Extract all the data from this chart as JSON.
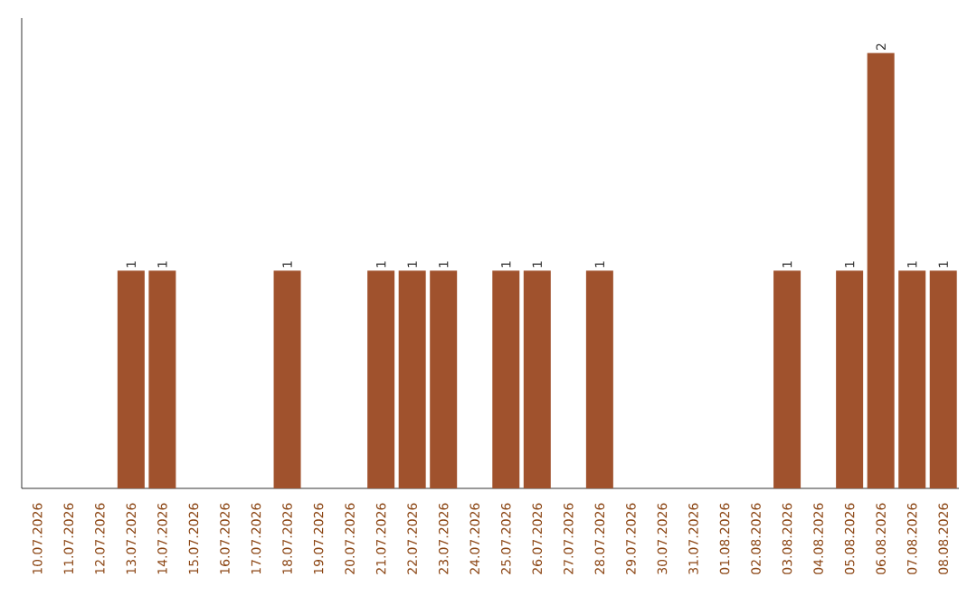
{
  "chart_data": {
    "type": "bar",
    "categories": [
      "10.07.2026",
      "11.07.2026",
      "12.07.2026",
      "13.07.2026",
      "14.07.2026",
      "15.07.2026",
      "16.07.2026",
      "17.07.2026",
      "18.07.2026",
      "19.07.2026",
      "20.07.2026",
      "21.07.2026",
      "22.07.2026",
      "23.07.2026",
      "24.07.2026",
      "25.07.2026",
      "26.07.2026",
      "27.07.2026",
      "28.07.2026",
      "29.07.2026",
      "30.07.2026",
      "31.07.2026",
      "01.08.2026",
      "02.08.2026",
      "03.08.2026",
      "04.08.2026",
      "05.08.2026",
      "06.08.2026",
      "07.08.2026",
      "08.08.2026"
    ],
    "values": [
      0,
      0,
      0,
      1,
      1,
      0,
      0,
      0,
      1,
      0,
      0,
      1,
      1,
      1,
      0,
      1,
      1,
      0,
      1,
      0,
      0,
      0,
      0,
      0,
      1,
      0,
      1,
      2,
      1,
      1
    ],
    "value_labels": [
      null,
      null,
      null,
      "1",
      "1",
      null,
      null,
      null,
      "1",
      null,
      null,
      "1",
      "1",
      "1",
      null,
      "1",
      "1",
      null,
      "1",
      null,
      null,
      null,
      null,
      null,
      "1",
      null,
      "1",
      "2",
      "1",
      "1"
    ],
    "color": "#a0522d"
  }
}
